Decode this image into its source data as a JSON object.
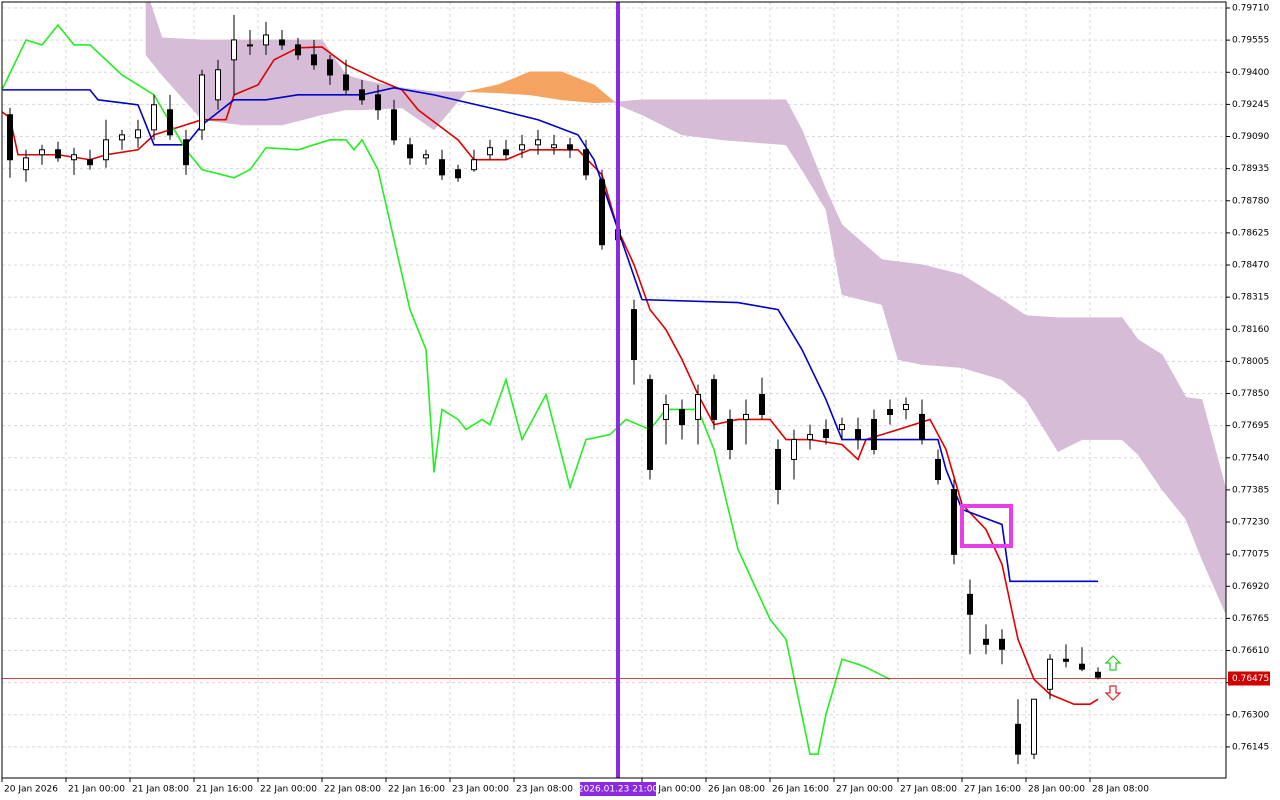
{
  "chart_data": {
    "type": "candlestick",
    "grid": true,
    "xlim": [
      0,
      153
    ],
    "ylim": [
      0.75995,
      0.79739
    ],
    "xticks": [
      {
        "value": 0,
        "label": "20 Jan 2026"
      },
      {
        "value": 8,
        "label": "21 Jan 00:00"
      },
      {
        "value": 16,
        "label": "21 Jan 08:00"
      },
      {
        "value": 24,
        "label": "21 Jan 16:00"
      },
      {
        "value": 32,
        "label": "22 Jan 00:00"
      },
      {
        "value": 40,
        "label": "22 Jan 08:00"
      },
      {
        "value": 48,
        "label": "22 Jan 16:00"
      },
      {
        "value": 56,
        "label": "23 Jan 00:00"
      },
      {
        "value": 64,
        "label": "23 Jan 08:00"
      },
      {
        "value": 80,
        "label": "26 Jan 00:00"
      },
      {
        "value": 88,
        "label": "26 Jan 08:00"
      },
      {
        "value": 96,
        "label": "26 Jan 16:00"
      },
      {
        "value": 104,
        "label": "27 Jan 00:00"
      },
      {
        "value": 112,
        "label": "27 Jan 08:00"
      },
      {
        "value": 120,
        "label": "27 Jan 16:00"
      },
      {
        "value": 128,
        "label": "28 Jan 00:00"
      },
      {
        "value": 136,
        "label": "28 Jan 08:00"
      }
    ],
    "yticks": [
      {
        "value": 0.7971,
        "label": "0.79710"
      },
      0.79555,
      {
        "value": 0.794,
        "label": "0.79400"
      },
      0.79245,
      {
        "value": 0.7909,
        "label": "0.79090"
      },
      0.78935,
      {
        "value": 0.7878,
        "label": "0.78780"
      },
      0.78625,
      {
        "value": 0.7847,
        "label": "0.78470"
      },
      0.78315,
      {
        "value": 0.7816,
        "label": "0.78160"
      },
      0.78005,
      {
        "value": 0.7785,
        "label": "0.77850"
      },
      0.77695,
      {
        "value": 0.7754,
        "label": "0.77540"
      },
      0.77385,
      {
        "value": 0.7723,
        "label": "0.77230"
      },
      0.77075,
      {
        "value": 0.7692,
        "label": "0.76920"
      },
      0.76765,
      {
        "value": 0.7661,
        "label": "0.76610"
      },
      0.76455,
      {
        "value": 0.763,
        "label": "0.76300"
      },
      0.76145
    ],
    "up_color": "#ffffff",
    "down_color": "#000000",
    "x": [
      1,
      3,
      5,
      7,
      9,
      11,
      13,
      15,
      17,
      19,
      21,
      23,
      25,
      27,
      29,
      31,
      33,
      35,
      37,
      39,
      41,
      43,
      45,
      47,
      49,
      51,
      53,
      55,
      57,
      59,
      61,
      63,
      65,
      67,
      69,
      71,
      73,
      75,
      77,
      79,
      81,
      83,
      85,
      87,
      89,
      91,
      93,
      95,
      97,
      99,
      101,
      103,
      105,
      107,
      109,
      111,
      113,
      115,
      117,
      119,
      121,
      123,
      125,
      127,
      129,
      131,
      133,
      135,
      137
    ],
    "open": [
      0.79195,
      0.7893,
      0.79002,
      0.79026,
      0.78978,
      0.78978,
      0.78978,
      0.79074,
      0.79084,
      0.79122,
      0.79219,
      0.79074,
      0.79122,
      0.79267,
      0.7946,
      0.79532,
      0.79532,
      0.79556,
      0.79532,
      0.79484,
      0.7946,
      0.79387,
      0.79315,
      0.79291,
      0.79219,
      0.7905,
      0.78987,
      0.78978,
      0.7893,
      0.7893,
      0.79002,
      0.79026,
      0.79026,
      0.7905,
      0.79036,
      0.7905,
      0.79026,
      0.78881,
      0.7864,
      0.78255,
      0.77917,
      0.77725,
      0.77773,
      0.77725,
      0.77917,
      0.77725,
      0.77725,
      0.77845,
      0.7758,
      0.77532,
      0.77628,
      0.77676,
      0.77676,
      0.77676,
      0.77725,
      0.77773,
      0.77773,
      0.77749,
      0.77532,
      0.77387,
      0.76881,
      0.76664,
      0.76664,
      0.76254,
      0.7611,
      0.76423,
      0.76568,
      0.76544,
      0.76505
    ],
    "high": [
      0.79228,
      0.79026,
      0.7905,
      0.79065,
      0.79036,
      0.79026,
      0.79171,
      0.79122,
      0.79171,
      0.79291,
      0.79291,
      0.79122,
      0.79412,
      0.7946,
      0.79677,
      0.79604,
      0.79643,
      0.79604,
      0.79566,
      0.79556,
      0.79484,
      0.7946,
      0.79363,
      0.79339,
      0.79267,
      0.79084,
      0.79026,
      0.79026,
      0.78954,
      0.79026,
      0.79074,
      0.79074,
      0.79098,
      0.79122,
      0.79098,
      0.79084,
      0.79074,
      0.7893,
      0.78689,
      0.78303,
      0.77941,
      0.77845,
      0.77821,
      0.77893,
      0.77941,
      0.77773,
      0.77821,
      0.77927,
      0.77628,
      0.77676,
      0.777,
      0.77725,
      0.77734,
      0.77734,
      0.77773,
      0.77821,
      0.77831,
      0.77821,
      0.7758,
      0.77435,
      0.76953,
      0.76736,
      0.76712,
      0.76375,
      0.76375,
      0.76592,
      0.7664,
      0.76626,
      0.76529
    ],
    "low": [
      0.78891,
      0.78872,
      0.78954,
      0.78968,
      0.78905,
      0.7893,
      0.78939,
      0.79026,
      0.79036,
      0.79074,
      0.79074,
      0.78905,
      0.79074,
      0.79219,
      0.79291,
      0.79484,
      0.79484,
      0.79508,
      0.7946,
      0.79412,
      0.79339,
      0.79291,
      0.79243,
      0.79171,
      0.7905,
      0.78954,
      0.78954,
      0.78881,
      0.78872,
      0.7892,
      0.78978,
      0.78978,
      0.78987,
      0.79002,
      0.79002,
      0.78987,
      0.78881,
      0.78544,
      0.78544,
      0.77893,
      0.77435,
      0.77604,
      0.77628,
      0.77604,
      0.77676,
      0.77532,
      0.77604,
      0.77725,
      0.77315,
      0.77435,
      0.7758,
      0.77604,
      0.77628,
      0.7758,
      0.77556,
      0.777,
      0.77725,
      0.77604,
      0.77411,
      0.77026,
      0.76592,
      0.76592,
      0.76544,
      0.76062,
      0.76086,
      0.76375,
      0.76529,
      0.7651,
      0.76471
    ],
    "close": [
      0.78978,
      0.78987,
      0.79026,
      0.78987,
      0.79002,
      0.78954,
      0.79074,
      0.79098,
      0.79122,
      0.79243,
      0.79098,
      0.78954,
      0.79387,
      0.79412,
      0.79556,
      0.79532,
      0.7958,
      0.79532,
      0.79484,
      0.79436,
      0.79387,
      0.79315,
      0.79267,
      0.79219,
      0.79074,
      0.78987,
      0.79002,
      0.78905,
      0.78891,
      0.78978,
      0.79036,
      0.79002,
      0.7905,
      0.79074,
      0.7905,
      0.79026,
      0.78905,
      0.78568,
      0.78592,
      0.78014,
      0.77484,
      0.77797,
      0.777,
      0.77845,
      0.77725,
      0.7758,
      0.77749,
      0.77749,
      0.77387,
      0.77628,
      0.77652,
      0.77638,
      0.777,
      0.77628,
      0.7758,
      0.77749,
      0.77797,
      0.77628,
      0.77435,
      0.77074,
      0.76785,
      0.7664,
      0.76616,
      0.7611,
      0.76375,
      0.76568,
      0.76558,
      0.7652,
      0.76481
    ],
    "series": [
      {
        "color": "#e00000",
        "x": [
          0,
          1,
          2,
          7,
          11,
          13,
          17,
          19,
          21,
          25,
          28,
          29,
          32,
          34,
          37,
          40,
          43,
          47,
          50,
          52,
          57,
          59,
          63,
          66,
          70,
          72,
          75,
          77,
          79,
          81,
          83,
          85,
          87,
          89,
          92,
          96,
          98,
          101,
          105,
          107,
          108,
          112,
          116,
          118,
          120,
          123,
          125,
          127,
          129,
          131,
          134,
          136,
          137
        ],
        "values": [
          0.79209,
          0.7918,
          0.79002,
          0.79002,
          0.78978,
          0.79002,
          0.79026,
          0.79098,
          0.79122,
          0.79171,
          0.79171,
          0.79291,
          0.79339,
          0.7946,
          0.79518,
          0.79522,
          0.79436,
          0.79363,
          0.79315,
          0.79219,
          0.79074,
          0.78978,
          0.78978,
          0.79026,
          0.79026,
          0.79026,
          0.78905,
          0.7864,
          0.78472,
          0.78255,
          0.78158,
          0.78014,
          0.77845,
          0.777,
          0.77725,
          0.77725,
          0.77628,
          0.77628,
          0.77604,
          0.77532,
          0.77628,
          0.77676,
          0.77725,
          0.7758,
          0.77315,
          0.77194,
          0.77026,
          0.76664,
          0.76471,
          0.76399,
          0.76351,
          0.76351,
          0.76375
        ]
      },
      {
        "color": "#0000cc",
        "x": [
          0,
          11,
          12,
          17,
          19,
          23,
          25,
          29,
          33,
          37,
          45,
          49,
          54,
          62,
          67,
          72,
          74,
          77,
          80,
          92,
          97,
          100,
          103,
          105,
          117,
          118,
          120,
          125,
          126,
          137
        ],
        "values": [
          0.79315,
          0.79315,
          0.79267,
          0.79243,
          0.7905,
          0.7905,
          0.79146,
          0.79267,
          0.79267,
          0.79291,
          0.79291,
          0.79325,
          0.79291,
          0.79219,
          0.79171,
          0.79098,
          0.78978,
          0.7864,
          0.78303,
          0.78289,
          0.78255,
          0.78062,
          0.77821,
          0.77628,
          0.77628,
          0.77484,
          0.77291,
          0.77218,
          0.76944,
          0.76944
        ]
      },
      {
        "color": "#22ee22",
        "x": [
          0,
          3,
          5,
          7,
          9,
          11,
          15,
          19,
          23,
          25,
          29,
          31,
          33,
          37,
          41,
          43,
          44,
          45,
          47,
          49,
          51,
          53,
          54,
          55,
          57,
          58,
          60,
          61,
          63,
          65,
          68,
          71,
          73,
          76,
          78,
          81,
          83,
          87,
          89,
          92,
          96,
          98,
          101,
          102,
          103,
          105,
          107,
          108,
          111
        ],
        "values": [
          0.79315,
          0.79556,
          0.79532,
          0.79628,
          0.79532,
          0.79532,
          0.79387,
          0.79291,
          0.79026,
          0.7893,
          0.78891,
          0.7893,
          0.79036,
          0.79026,
          0.79074,
          0.79074,
          0.79026,
          0.79074,
          0.7893,
          0.78592,
          0.78255,
          0.78062,
          0.77469,
          0.77773,
          0.77725,
          0.77676,
          0.77725,
          0.777,
          0.77917,
          0.77628,
          0.77845,
          0.77397,
          0.77628,
          0.77652,
          0.77725,
          0.77676,
          0.77773,
          0.77773,
          0.7758,
          0.77098,
          0.76761,
          0.76664,
          0.7611,
          0.7611,
          0.76303,
          0.76568,
          0.76544,
          0.76529,
          0.76471
        ]
      }
    ],
    "cloud": {
      "bull_color": "#f4a460",
      "bear_color": "#d6bcd6",
      "x": [
        18,
        20,
        25,
        30,
        35,
        40,
        43,
        45,
        50,
        54,
        58,
        62,
        66,
        70,
        74,
        77,
        80,
        85,
        90,
        98,
        100,
        103,
        105,
        110,
        112,
        115,
        120,
        125,
        128,
        132,
        135,
        140,
        142,
        145,
        148,
        150,
        153
      ],
      "span_a": [
        0.79484,
        0.79387,
        0.79171,
        0.79146,
        0.79146,
        0.79195,
        0.79219,
        0.79219,
        0.79228,
        0.79122,
        0.79306,
        0.79339,
        0.79402,
        0.79402,
        0.79339,
        0.79243,
        0.79195,
        0.79098,
        0.79074,
        0.7905,
        0.7893,
        0.78737,
        0.78327,
        0.78279,
        0.78014,
        0.7799,
        0.77975,
        0.77917,
        0.77821,
        0.7757,
        0.77628,
        0.77628,
        0.77556,
        0.77387,
        0.77243,
        0.7705,
        0.76785
      ],
      "span_b": [
        0.79797,
        0.79566,
        0.79556,
        0.79556,
        0.79556,
        0.79556,
        0.79387,
        0.79363,
        0.79325,
        0.79306,
        0.79306,
        0.79301,
        0.79291,
        0.79267,
        0.79253,
        0.79257,
        0.79267,
        0.79267,
        0.79267,
        0.79267,
        0.79122,
        0.78833,
        0.78664,
        0.78496,
        0.78486,
        0.78472,
        0.78423,
        0.78303,
        0.78226,
        0.78216,
        0.78216,
        0.78216,
        0.7811,
        0.78038,
        0.77831,
        0.77821,
        0.77387
      ]
    },
    "current_price": {
      "value": 0.76475,
      "color": "#d00000"
    },
    "marker": {
      "value": 77,
      "label": "2026.01.23 21:00",
      "color": "#8a2be2"
    }
  }
}
